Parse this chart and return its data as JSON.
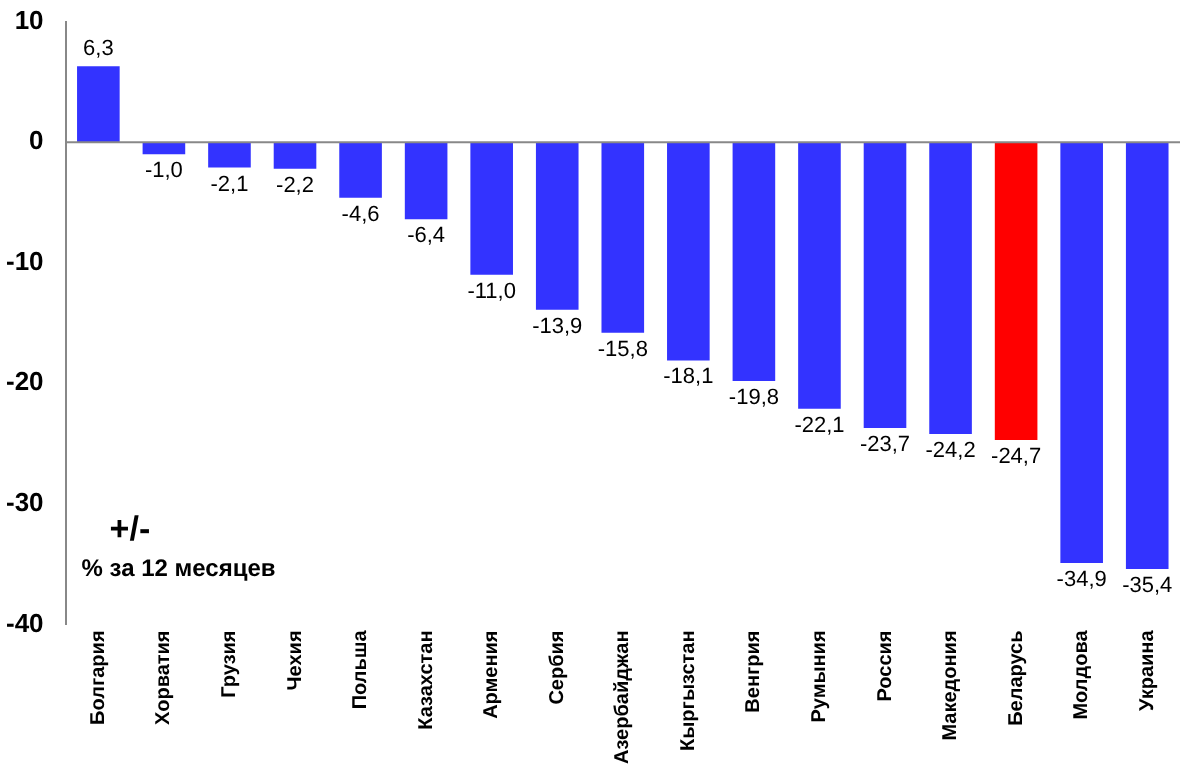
{
  "chart_data": {
    "type": "bar",
    "categories": [
      "Болгария",
      "Хорватия",
      "Грузия",
      "Чехия",
      "Польша",
      "Казахстан",
      "Армения",
      "Сербия",
      "Азербайджан",
      "Кыргызстан",
      "Венгрия",
      "Румыния",
      "Россия",
      "Македония",
      "Беларусь",
      "Молдова",
      "Украина"
    ],
    "values": [
      6.3,
      -1.0,
      -2.1,
      -2.2,
      -4.6,
      -6.4,
      -11.0,
      -13.9,
      -15.8,
      -18.1,
      -19.8,
      -22.1,
      -23.7,
      -24.2,
      -24.7,
      -34.9,
      -35.4
    ],
    "value_labels": [
      "6,3",
      "-1,0",
      "-2,1",
      "-2,2",
      "-4,6",
      "-6,4",
      "-11,0",
      "-13,9",
      "-15,8",
      "-18,1",
      "-19,8",
      "-22,1",
      "-23,7",
      "-24,2",
      "-24,7",
      "-34,9",
      "-35,4"
    ],
    "colors": [
      "#3333ff",
      "#3333ff",
      "#3333ff",
      "#3333ff",
      "#3333ff",
      "#3333ff",
      "#3333ff",
      "#3333ff",
      "#3333ff",
      "#3333ff",
      "#3333ff",
      "#3333ff",
      "#3333ff",
      "#3333ff",
      "#ff0000",
      "#3333ff",
      "#3333ff"
    ],
    "ylim": [
      -40,
      10
    ],
    "yticks": [
      -40,
      -30,
      -20,
      -10,
      0,
      10
    ],
    "annotations": [
      "+/-",
      "% за 12 месяцев"
    ],
    "ref_lines": [
      {
        "axis": "y",
        "value": 0,
        "color": "#888888"
      }
    ],
    "legend": false,
    "grid": false
  }
}
